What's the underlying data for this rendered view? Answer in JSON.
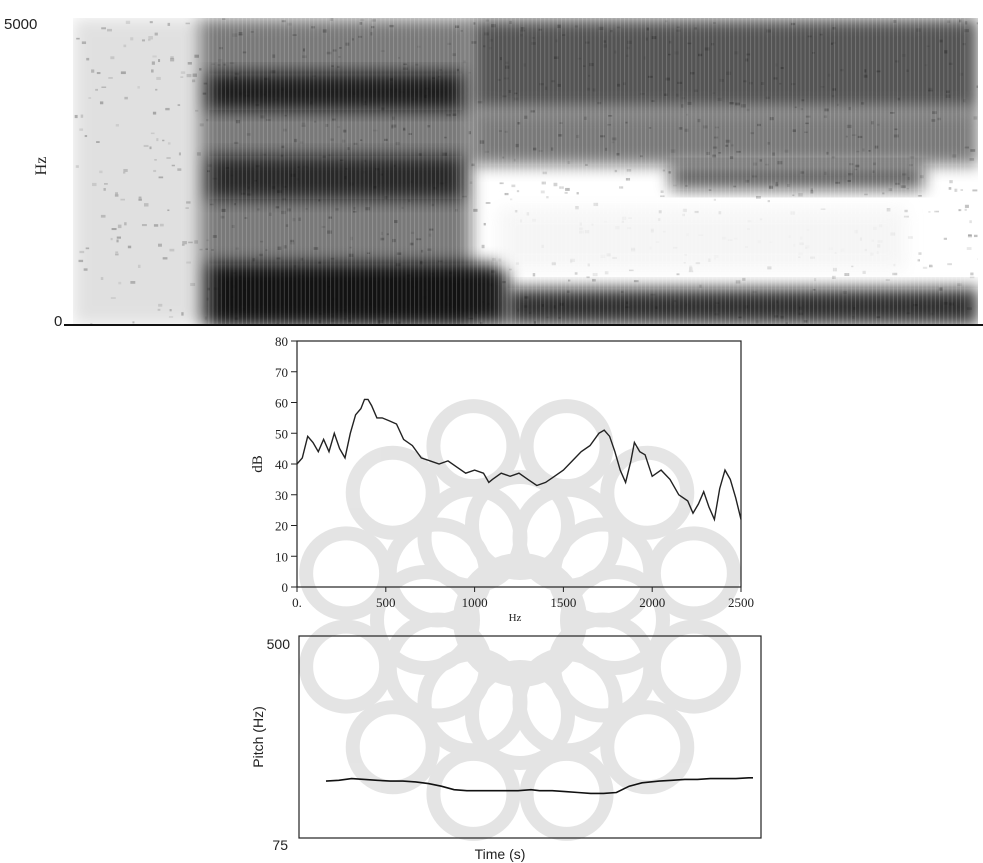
{
  "chart_data": [
    {
      "type": "heatmap",
      "subtype": "spectrogram",
      "ylabel": "Hz",
      "ylim": [
        0,
        5000
      ],
      "y_ticks": [
        "0",
        "5000"
      ],
      "xlabel": "",
      "grid": false,
      "colors": {
        "low": "#ffffff",
        "high": "#0d0d0d"
      },
      "regions": [
        {
          "description": "silence / noise",
          "energy": 0.12
        },
        {
          "description": "voiced segment with low formants",
          "energy": 0.85
        },
        {
          "description": "voiced segment with high formants",
          "energy": 0.7
        }
      ]
    },
    {
      "type": "line",
      "xlabel": "Hz",
      "ylabel": "dB",
      "xlim": [
        0,
        2500
      ],
      "ylim": [
        0,
        80
      ],
      "x_ticks": [
        "0.",
        "500",
        "1000",
        "1500",
        "2000",
        "2500"
      ],
      "y_ticks": [
        "0",
        "10",
        "20",
        "30",
        "40",
        "50",
        "60",
        "70",
        "80"
      ],
      "grid": false,
      "series": [
        {
          "x": [
            0,
            30,
            60,
            90,
            120,
            150,
            180,
            210,
            240,
            270,
            300,
            330,
            360,
            380,
            400,
            420,
            450,
            480,
            520,
            560,
            600,
            650,
            700,
            750,
            800,
            850,
            900,
            950,
            1000,
            1050,
            1080,
            1100,
            1150,
            1200,
            1250,
            1300,
            1350,
            1400,
            1450,
            1500,
            1550,
            1600,
            1650,
            1700,
            1730,
            1760,
            1790,
            1820,
            1850,
            1880,
            1900,
            1930,
            1960,
            2000,
            2050,
            2100,
            2150,
            2200,
            2230,
            2260,
            2290,
            2320,
            2350,
            2380,
            2410,
            2440,
            2470,
            2500
          ],
          "y": [
            40,
            42,
            49,
            47,
            44,
            48,
            44,
            50,
            45,
            42,
            50,
            56,
            58,
            61,
            61,
            59,
            55,
            55,
            54,
            53,
            48,
            46,
            42,
            41,
            40,
            41,
            39,
            37,
            38,
            37,
            34,
            35,
            37,
            36,
            37,
            35,
            33,
            34,
            36,
            38,
            41,
            44,
            46,
            50,
            51,
            49,
            44,
            38,
            34,
            41,
            47,
            44,
            43,
            36,
            38,
            35,
            30,
            28,
            24,
            27,
            31,
            26,
            22,
            32,
            38,
            35,
            29,
            22
          ]
        }
      ]
    },
    {
      "type": "line",
      "xlabel": "Time (s)",
      "ylabel": "Pitch (Hz)",
      "ylim": [
        75,
        500
      ],
      "y_ticks": [
        "75",
        "500"
      ],
      "yscale": "log",
      "grid": false,
      "series": [
        {
          "x": [
            0,
            0.03,
            0.06,
            0.09,
            0.12,
            0.15,
            0.18,
            0.21,
            0.24,
            0.27,
            0.3,
            0.33,
            0.36,
            0.39,
            0.42,
            0.45,
            0.48,
            0.5,
            0.53,
            0.56,
            0.59,
            0.62,
            0.65,
            0.68,
            0.71,
            0.74,
            0.76,
            0.78,
            0.81,
            0.84,
            0.87,
            0.9,
            0.93,
            0.96,
            0.99,
            1.0
          ],
          "y": [
            128,
            129,
            131,
            130,
            129,
            128,
            128,
            127,
            125,
            122,
            118,
            117,
            117,
            117,
            117,
            117,
            118,
            117,
            117,
            116,
            115,
            114,
            114,
            115,
            122,
            126,
            127,
            128,
            129,
            130,
            130,
            131,
            131,
            131,
            132,
            132
          ]
        }
      ]
    }
  ]
}
